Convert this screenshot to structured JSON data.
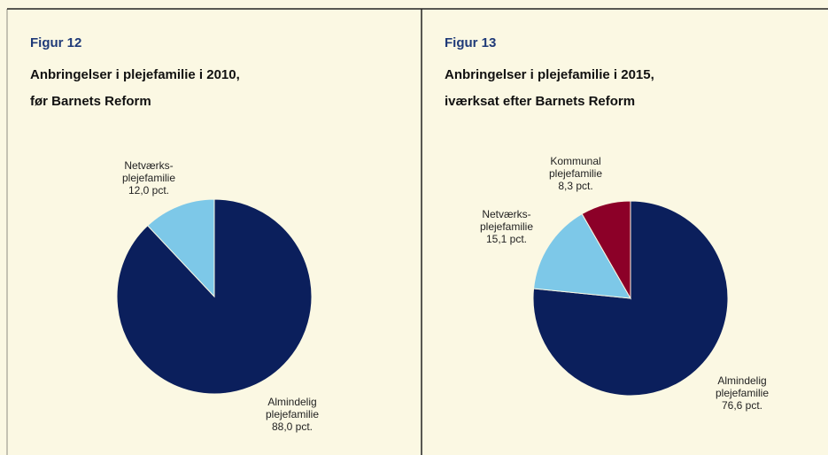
{
  "chart_data": [
    {
      "type": "pie",
      "figure": "Figur 12",
      "title": "Anbringelser i plejefamilie i 2010,",
      "subtitle": "før Barnets Reform",
      "categories": [
        "Almindelig plejefamilie",
        "Netværks-plejefamilie"
      ],
      "values": [
        88.0,
        12.0
      ],
      "value_labels": [
        "88,0 pct.",
        "12,0 pct."
      ],
      "colors": [
        "#0b1f5c",
        "#7dc8e8"
      ]
    },
    {
      "type": "pie",
      "figure": "Figur 13",
      "title": "Anbringelser i plejefamilie i 2015,",
      "subtitle": "iværksat efter Barnets Reform",
      "categories": [
        "Almindelig plejefamilie",
        "Netværks-plejefamilie",
        "Kommunal plejefamilie"
      ],
      "values": [
        76.6,
        15.1,
        8.3
      ],
      "value_labels": [
        "76,6 pct.",
        "15,1 pct.",
        "8,3 pct."
      ],
      "colors": [
        "#0b1f5c",
        "#7dc8e8",
        "#8c0028"
      ]
    }
  ]
}
